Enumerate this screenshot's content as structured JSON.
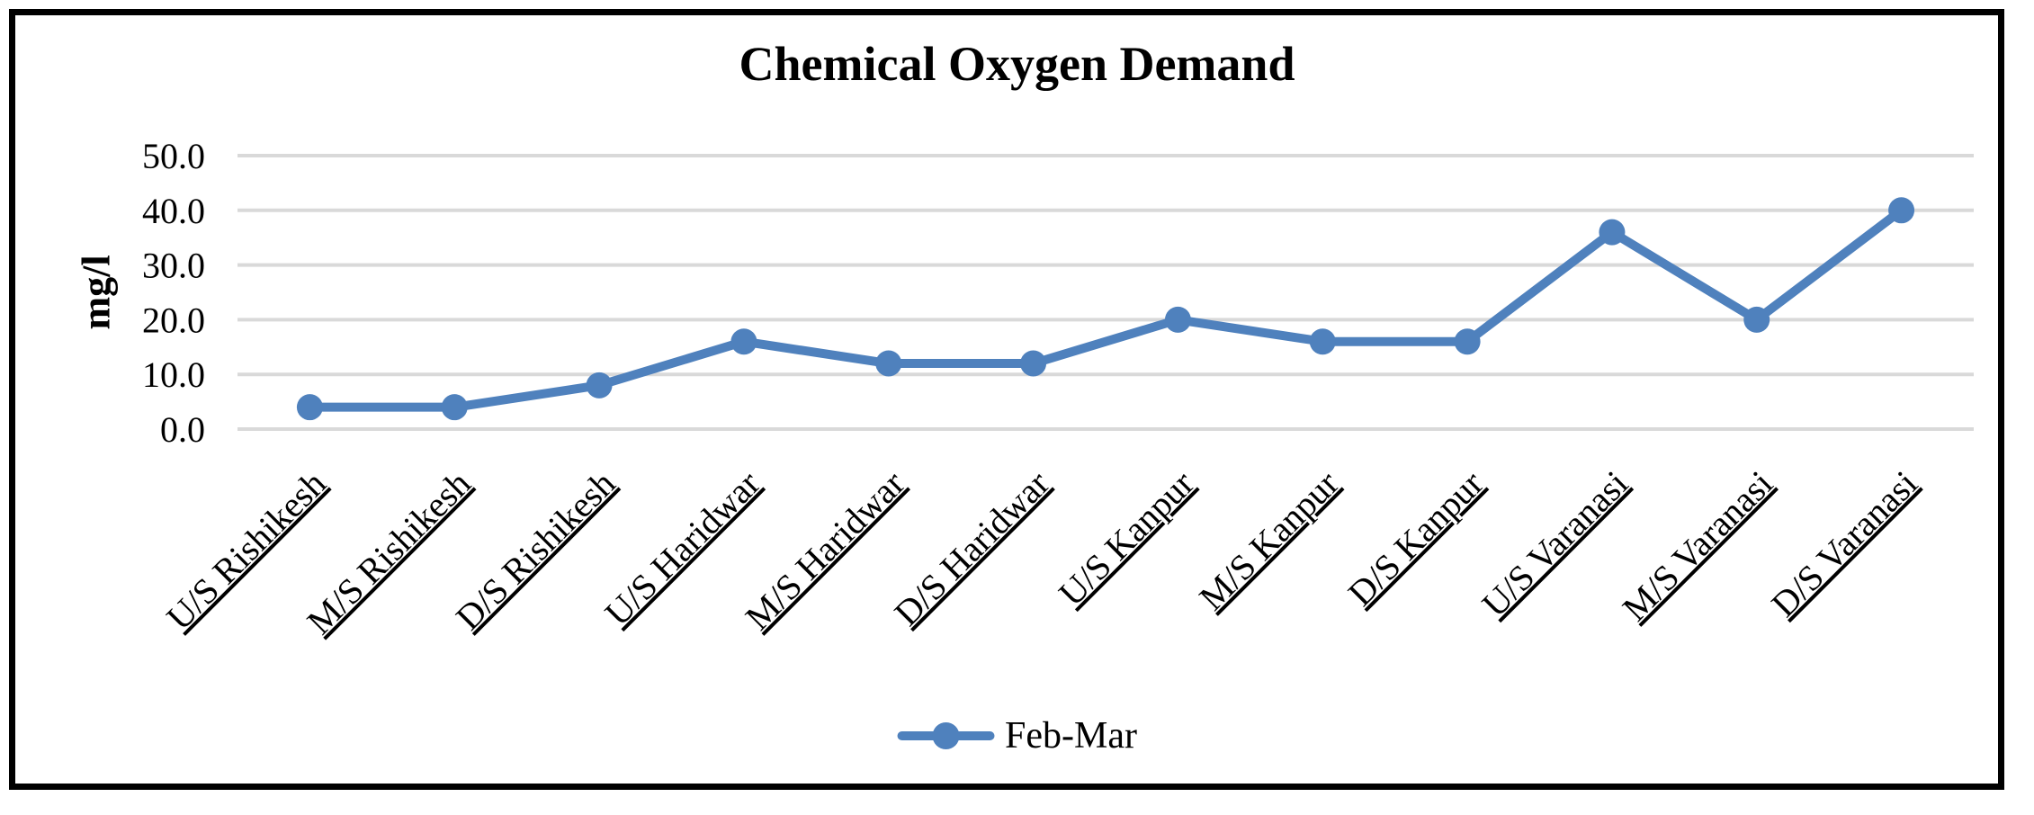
{
  "chart_data": {
    "type": "line",
    "title": "Chemical Oxygen Demand",
    "xlabel": "",
    "ylabel": "mg/l",
    "categories": [
      "U/S Rishikesh",
      "M/S Rishikesh",
      "D/S Rishikesh",
      "U/S Haridwar",
      "M/S Haridwar",
      "D/S Haridwar",
      "U/S Kanpur",
      "M/S Kanpur",
      "D/S Kanpur",
      "U/S Varanasi",
      "M/S Varanasi",
      "D/S Varanasi"
    ],
    "series": [
      {
        "name": "Feb-Mar",
        "values": [
          4.0,
          4.0,
          8.0,
          16.0,
          12.0,
          12.0,
          20.0,
          16.0,
          16.0,
          36.0,
          20.0,
          40.0
        ]
      }
    ],
    "ylim": [
      0,
      50
    ],
    "ytick_step": 10,
    "ytick_labels": [
      "0.0",
      "10.0",
      "20.0",
      "30.0",
      "40.0",
      "50.0"
    ],
    "grid": true,
    "legend_position": "bottom",
    "x_label_rotation_deg": -45,
    "x_labels_underlined": true,
    "colors": {
      "series": "#4F81BD",
      "gridline": "#D9D9D9",
      "text": "#000000",
      "frame_border": "#000000",
      "background": "#FFFFFF"
    }
  }
}
